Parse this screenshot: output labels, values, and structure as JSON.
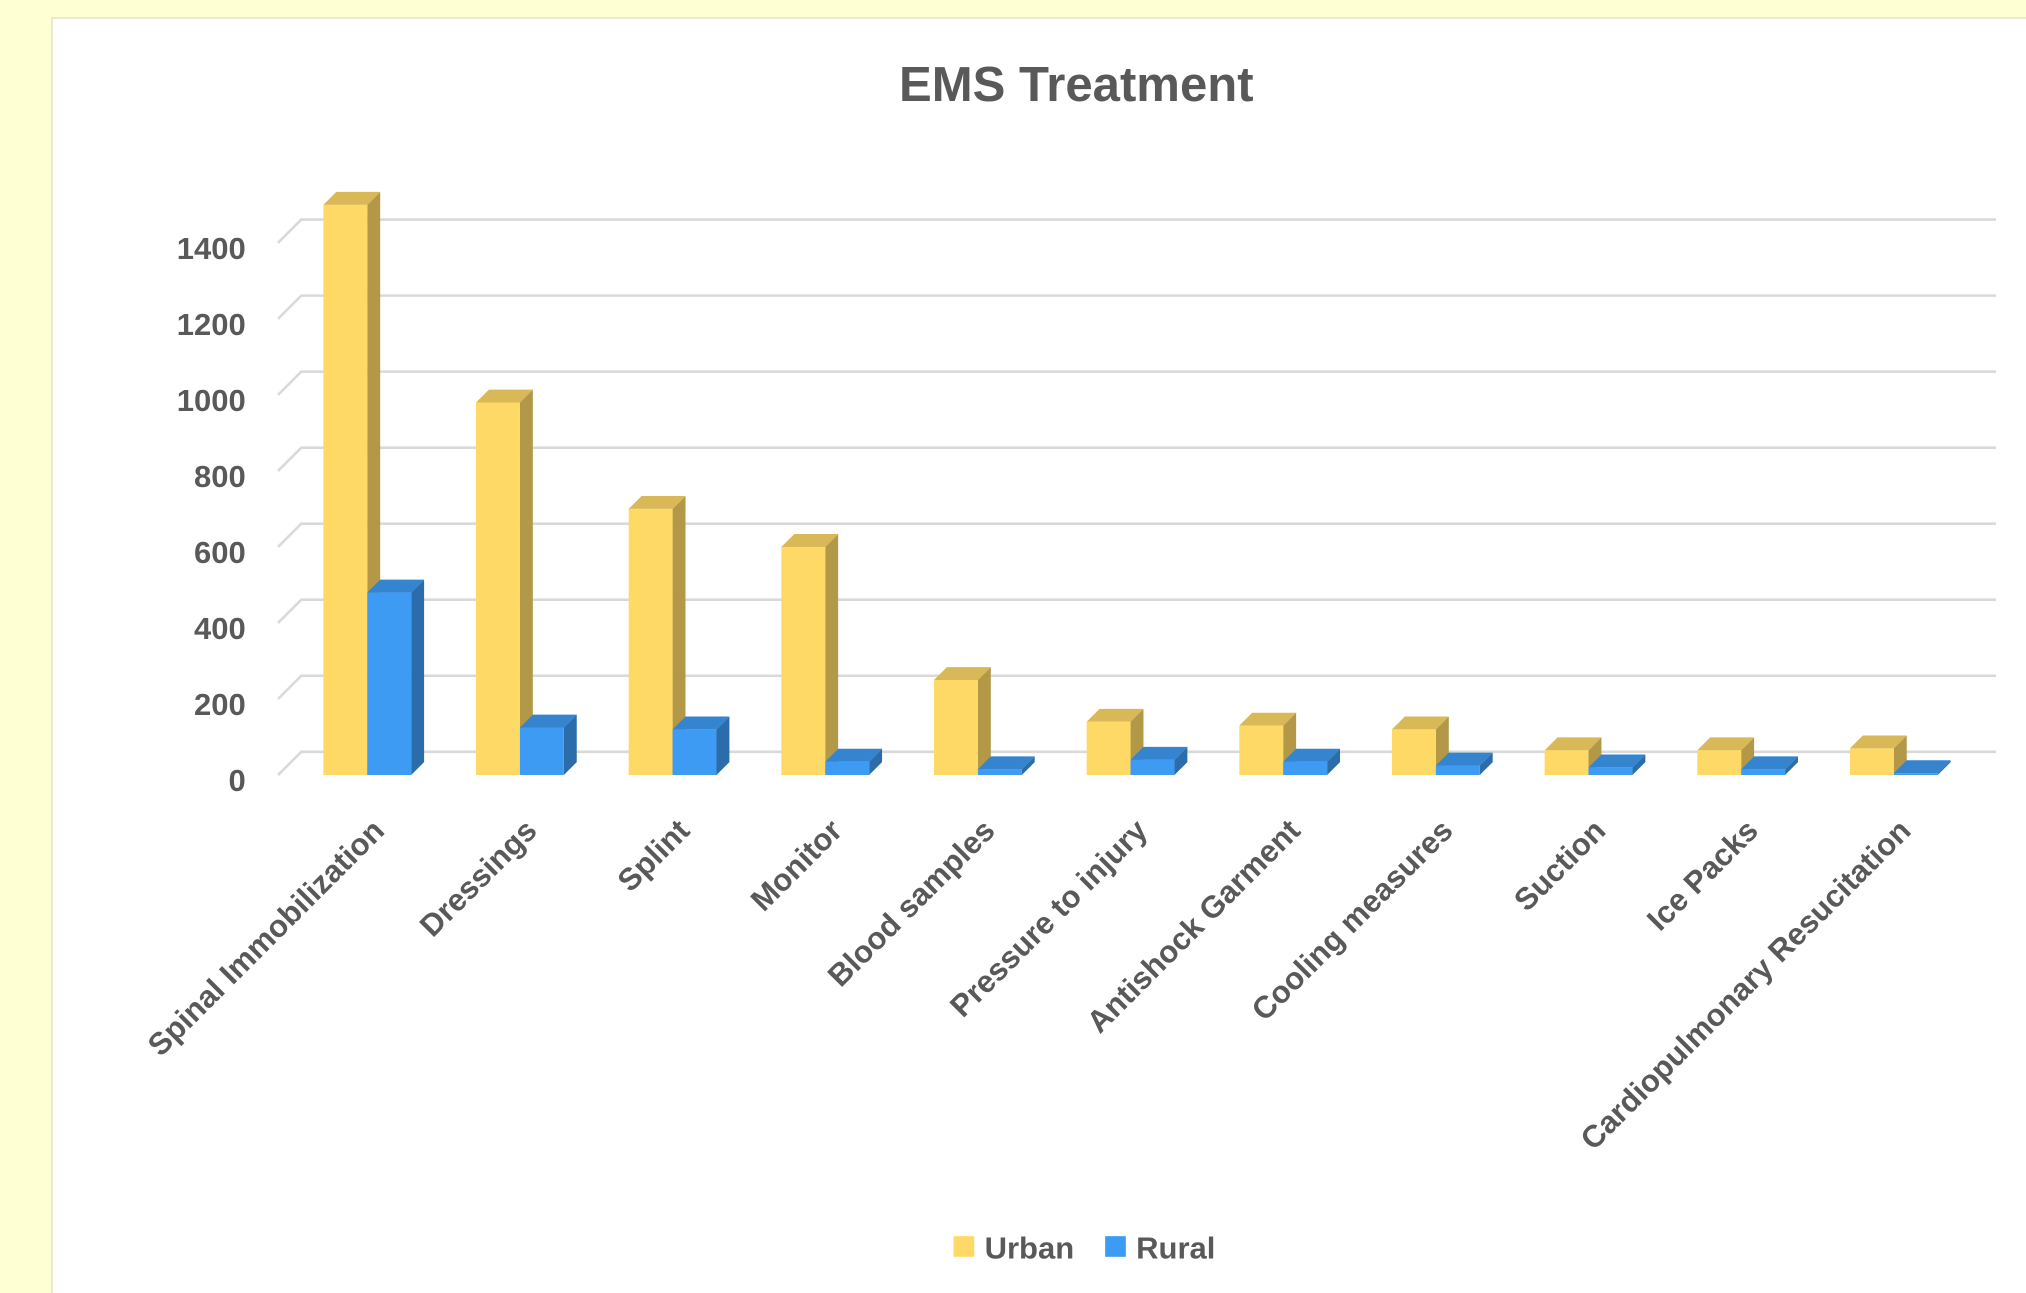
{
  "chart_data": {
    "type": "bar3d",
    "title": "EMS Treatment",
    "categories": [
      "Spinal Immobilization",
      "Dressings",
      "Splint",
      "Monitor",
      "Blood samples",
      "Pressure to injury",
      "Antishock Garment",
      "Cooling measures",
      "Suction",
      "Ice Packs",
      "Cardiopulmonary Resucitation"
    ],
    "series": [
      {
        "name": "Urban",
        "color": "#ffd966",
        "values": [
          1500,
          980,
          700,
          600,
          250,
          140,
          130,
          120,
          65,
          65,
          70
        ]
      },
      {
        "name": "Rural",
        "color": "#3d9bf3",
        "values": [
          480,
          125,
          120,
          35,
          15,
          40,
          35,
          25,
          20,
          15,
          5
        ]
      }
    ],
    "ylim": [
      0,
      1400
    ],
    "yticks": [
      0,
      200,
      400,
      600,
      800,
      1000,
      1200,
      1400
    ],
    "grid": true,
    "legend": "bottom"
  }
}
